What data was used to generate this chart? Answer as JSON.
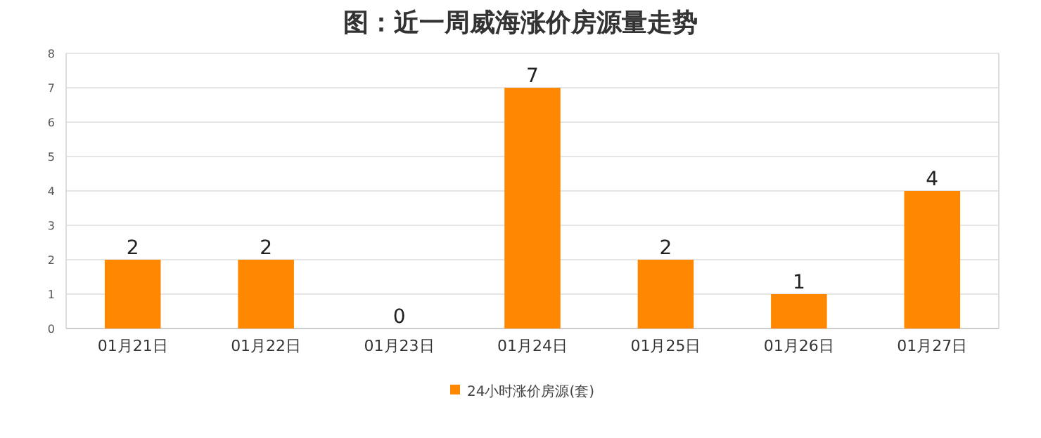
{
  "chart_data": {
    "type": "bar",
    "title": "图：近一周威海涨价房源量走势",
    "categories": [
      "01月21日",
      "01月22日",
      "01月23日",
      "01月24日",
      "01月25日",
      "01月26日",
      "01月27日"
    ],
    "series": [
      {
        "name": "24小时涨价房源(套)",
        "color": "#ff8800",
        "values": [
          2,
          2,
          0,
          7,
          2,
          1,
          4
        ]
      }
    ],
    "ylim": [
      0,
      8
    ],
    "yticks": [
      0,
      1,
      2,
      3,
      4,
      5,
      6,
      7,
      8
    ],
    "grid": "y",
    "legend": "bottom",
    "data_labels": true
  }
}
